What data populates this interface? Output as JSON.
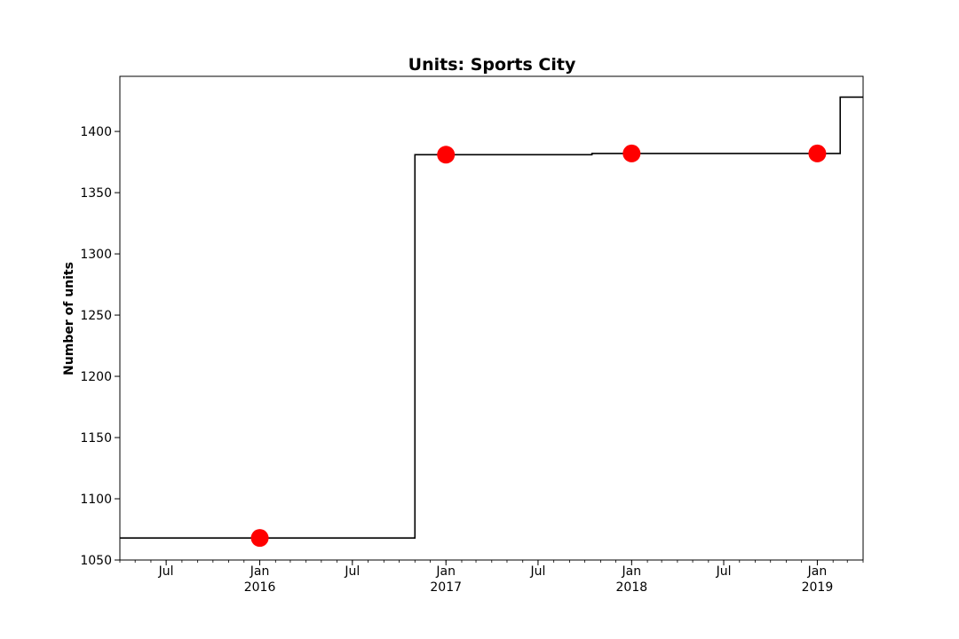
{
  "chart_data": {
    "type": "line",
    "title": "Units: Sports City",
    "xlabel": "",
    "ylabel": "Number of units",
    "x_range": [
      "2015-04-01",
      "2019-04-01"
    ],
    "ylim": [
      1050,
      1445
    ],
    "y_ticks": [
      1050,
      1100,
      1150,
      1200,
      1250,
      1300,
      1350,
      1400
    ],
    "x_ticks": [
      {
        "date": "2015-07-01",
        "label": "Jul",
        "sublabel": ""
      },
      {
        "date": "2016-01-01",
        "label": "Jan",
        "sublabel": "2016"
      },
      {
        "date": "2016-07-01",
        "label": "Jul",
        "sublabel": ""
      },
      {
        "date": "2017-01-01",
        "label": "Jan",
        "sublabel": "2017"
      },
      {
        "date": "2017-07-01",
        "label": "Jul",
        "sublabel": ""
      },
      {
        "date": "2018-01-01",
        "label": "Jan",
        "sublabel": "2018"
      },
      {
        "date": "2018-07-01",
        "label": "Jul",
        "sublabel": ""
      },
      {
        "date": "2019-01-01",
        "label": "Jan",
        "sublabel": "2019"
      }
    ],
    "grid": false,
    "series": [
      {
        "kind": "step",
        "color": "#000000",
        "points": [
          {
            "x": "2015-04-01",
            "y": 1068
          },
          {
            "x": "2016-11-01",
            "y": 1381
          },
          {
            "x": "2017-10-15",
            "y": 1382
          },
          {
            "x": "2019-02-15",
            "y": 1428
          },
          {
            "x": "2019-04-01",
            "y": 1428
          }
        ]
      },
      {
        "kind": "markers",
        "color": "#ff0000",
        "points": [
          {
            "x": "2016-01-01",
            "y": 1068
          },
          {
            "x": "2017-01-01",
            "y": 1381
          },
          {
            "x": "2018-01-01",
            "y": 1382
          },
          {
            "x": "2019-01-01",
            "y": 1382
          }
        ]
      }
    ]
  }
}
